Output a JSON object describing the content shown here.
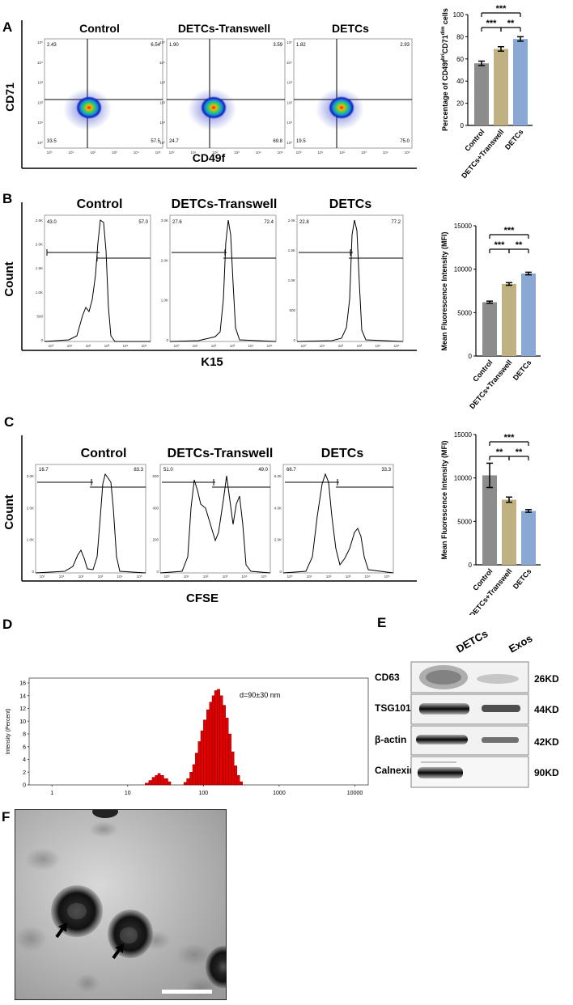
{
  "panels": {
    "A": {
      "letter": "A"
    },
    "B": {
      "letter": "B"
    },
    "C": {
      "letter": "C"
    },
    "D": {
      "letter": "D"
    },
    "E": {
      "letter": "E"
    },
    "F": {
      "letter": "F"
    }
  },
  "flow": {
    "titles": [
      "Control",
      "DETCs-Transwell",
      "DETCs"
    ],
    "A": {
      "ylabel": "CD71",
      "xlabel": "CD49f",
      "quadrants": [
        {
          "ul": "2.43",
          "ur": "6.54",
          "ll": "33.5",
          "lr": "57.5"
        },
        {
          "ul": "1.90",
          "ur": "3.59",
          "ll": "24.7",
          "lr": "69.8"
        },
        {
          "ul": "1.82",
          "ur": "2.93",
          "ll": "19.5",
          "lr": "75.0"
        }
      ],
      "ticks": [
        "10⁰",
        "10¹",
        "10²",
        "10³",
        "10⁴",
        "10⁵"
      ]
    },
    "B": {
      "ylabel": "Count",
      "xlabel": "K15",
      "gates": [
        {
          "left": "43.0",
          "right": "57.0"
        },
        {
          "left": "27.6",
          "right": "72.4"
        },
        {
          "left": "22.8",
          "right": "77.2"
        }
      ],
      "yticks": [
        [
          "2.5K",
          "2.0K",
          "1.5K",
          "1.0K",
          "500",
          "0"
        ],
        [
          "3.0K",
          "2.0K",
          "1.0K",
          "0"
        ],
        [
          "2.0K",
          "1.5K",
          "1.0K",
          "500",
          "0"
        ]
      ]
    },
    "C": {
      "ylabel": "Count",
      "xlabel": "CFSE",
      "gates": [
        {
          "left": "16.7",
          "right": "83.3"
        },
        {
          "left": "51.0",
          "right": "49.0"
        },
        {
          "left": "66.7",
          "right": "33.3"
        }
      ],
      "yticks": [
        [
          "3.0K",
          "2.0K",
          "1.0K",
          "0"
        ],
        [
          "600",
          "400",
          "200",
          "0"
        ],
        [
          "6.0K",
          "4.0K",
          "2.0K",
          "0"
        ]
      ]
    }
  },
  "chart_data": [
    {
      "type": "bar",
      "title": "",
      "categories": [
        "Control",
        "DETCs+Transwell",
        "DETCs"
      ],
      "values": [
        56,
        69,
        78
      ],
      "errors": [
        2,
        2,
        2
      ],
      "colors": [
        "#8c8c8c",
        "#bfb181",
        "#8aa8d4"
      ],
      "ylabel": "Percentage of CD49f",
      "ylabel_sup1": "bri",
      "ylabel_mid": "CD71",
      "ylabel_sup2": "dim",
      "ylabel_end": " cells",
      "ylim": [
        0,
        100
      ],
      "yticks": [
        0,
        20,
        40,
        60,
        80,
        100
      ],
      "significance": [
        "***",
        "***",
        "**"
      ]
    },
    {
      "type": "bar",
      "title": "",
      "categories": [
        "Control",
        "DETCs+Transwell",
        "DETCs"
      ],
      "values": [
        6200,
        8300,
        9500
      ],
      "errors": [
        120,
        150,
        150
      ],
      "colors": [
        "#8c8c8c",
        "#bfb181",
        "#8aa8d4"
      ],
      "ylabel": "Mean Fluorescence Intensity (MFI)",
      "ylim": [
        0,
        15000
      ],
      "yticks": [
        0,
        5000,
        10000,
        15000
      ],
      "significance": [
        "***",
        "***",
        "**"
      ]
    },
    {
      "type": "bar",
      "title": "",
      "categories": [
        "Control",
        "DETCs+Transwell",
        "DETCs"
      ],
      "values": [
        10300,
        7500,
        6200
      ],
      "errors": [
        1400,
        300,
        150
      ],
      "colors": [
        "#8c8c8c",
        "#bfb181",
        "#8aa8d4"
      ],
      "ylabel": "Mean Fluorescence Intensity (MFI)",
      "ylim": [
        0,
        15000
      ],
      "yticks": [
        0,
        5000,
        10000,
        15000
      ],
      "significance": [
        "***",
        "**",
        "**"
      ]
    },
    {
      "type": "bar",
      "title": "",
      "xscale": "log",
      "ylabel": "Intensity (Percent)",
      "xticks": [
        "1",
        "10",
        "100",
        "1000",
        "10000"
      ],
      "yticks": [
        0,
        2,
        4,
        6,
        8,
        10,
        12,
        14,
        16
      ],
      "ylim": [
        0,
        16
      ],
      "xlim": [
        0.5,
        15000
      ],
      "annotation": "d=90±30 nm",
      "x": [
        17,
        19,
        21,
        23,
        25,
        27,
        30,
        34,
        55,
        60,
        66,
        72,
        78,
        85,
        92,
        100,
        110,
        120,
        130,
        140,
        152,
        165,
        180,
        196,
        214,
        233,
        254,
        277,
        302
      ],
      "values": [
        0.3,
        0.7,
        1.2,
        1.5,
        1.8,
        1.5,
        1.0,
        0.5,
        0.4,
        1.0,
        2.0,
        3.2,
        5.0,
        6.8,
        8.5,
        10.2,
        11.8,
        13.0,
        14.0,
        14.8,
        15.0,
        14.0,
        12.5,
        10.5,
        8.0,
        5.2,
        3.0,
        1.5,
        0.5
      ]
    }
  ],
  "western": {
    "columns": [
      "DETCs",
      "Exos"
    ],
    "rows": [
      {
        "label": "CD63",
        "kd": "26KD"
      },
      {
        "label": "TSG101",
        "kd": "44KD"
      },
      {
        "label": "β-actin",
        "kd": "42KD"
      },
      {
        "label": "Calnexin",
        "kd": "90KD"
      }
    ]
  }
}
